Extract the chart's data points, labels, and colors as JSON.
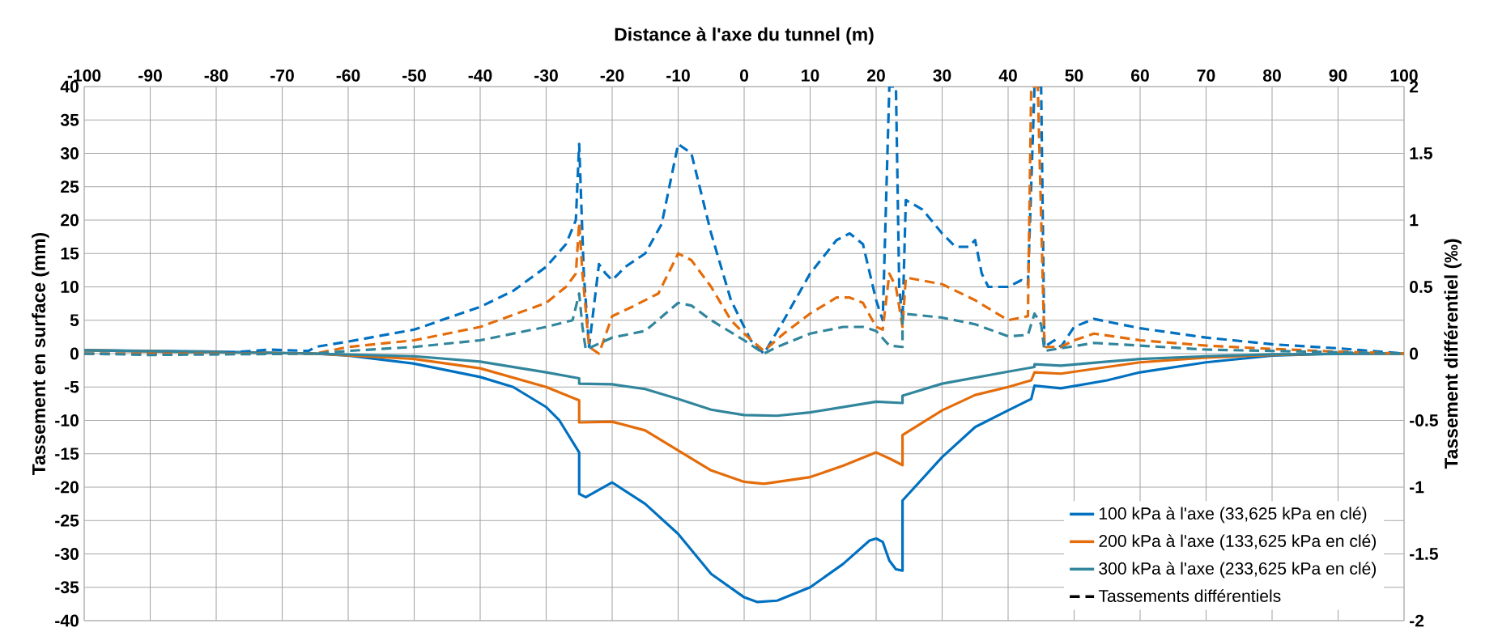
{
  "chart_data": {
    "type": "line",
    "xlabel": "Distance à l'axe du tunnel (m)",
    "ylabel": "Tassement en surface (mm)",
    "y2label": "Tassement différentiel (‰)",
    "xlim": [
      -100,
      100
    ],
    "xticks": [
      -100,
      -90,
      -80,
      -70,
      -60,
      -50,
      -40,
      -30,
      -20,
      -10,
      0,
      10,
      20,
      30,
      40,
      50,
      60,
      70,
      80,
      90,
      100
    ],
    "ylim": [
      -40,
      40
    ],
    "yticks": [
      -40,
      -35,
      -30,
      -25,
      -20,
      -15,
      -10,
      -5,
      0,
      5,
      10,
      15,
      20,
      25,
      30,
      35,
      40
    ],
    "y2lim": [
      -2,
      2
    ],
    "y2ticks": [
      -2,
      -1.5,
      -1,
      -0.5,
      0,
      0.5,
      1,
      1.5,
      2
    ],
    "grid": true,
    "legend": "bottom right",
    "annotations": [
      "Tassements différentiels"
    ],
    "series": [
      {
        "name": "100 kPa à l'axe (33,625 kPa en clé)",
        "color": "#0070c0",
        "line_style": "solid",
        "axis": "y",
        "x": [
          -100,
          -80,
          -65,
          -60,
          -50,
          -40,
          -35,
          -30,
          -28,
          -25,
          -25,
          -24,
          -20,
          -15,
          -10,
          -5,
          0,
          2,
          5,
          10,
          15,
          19,
          20,
          21,
          22,
          23,
          24,
          24,
          30,
          35,
          40,
          43.5,
          44,
          48,
          55,
          60,
          70,
          80,
          90,
          100
        ],
        "values": [
          0.5,
          0.3,
          0,
          -0.3,
          -1.5,
          -3.5,
          -5,
          -8,
          -10,
          -14.8,
          -21,
          -21.5,
          -19.3,
          -22.5,
          -27,
          -33,
          -36.5,
          -37.2,
          -37,
          -35,
          -31.5,
          -28,
          -27.7,
          -28.2,
          -31,
          -32.3,
          -32.5,
          -22,
          -15.5,
          -11,
          -8.5,
          -6.8,
          -4.8,
          -5.2,
          -4,
          -2.8,
          -1.3,
          -0.3,
          0,
          0
        ]
      },
      {
        "name": "200 kPa à l'axe (133,625 kPa en clé)",
        "color": "#e46c0a",
        "line_style": "solid",
        "axis": "y",
        "x": [
          -100,
          -65,
          -50,
          -40,
          -30,
          -25,
          -25,
          -20,
          -15,
          -10,
          -5,
          0,
          3,
          10,
          15,
          20,
          22,
          24,
          24,
          30,
          35,
          40,
          43.5,
          44,
          48,
          55,
          60,
          70,
          80,
          90,
          100
        ],
        "values": [
          0.5,
          0,
          -0.8,
          -2.2,
          -5,
          -7,
          -10.3,
          -10.2,
          -11.5,
          -14.5,
          -17.5,
          -19.2,
          -19.5,
          -18.5,
          -16.8,
          -14.8,
          -15.7,
          -16.7,
          -12.2,
          -8.5,
          -6.2,
          -5,
          -4,
          -2.8,
          -3,
          -2,
          -1.3,
          -0.6,
          -0.2,
          0,
          0
        ]
      },
      {
        "name": "300 kPa à l'axe (233,625 kPa en clé)",
        "color": "#31859c",
        "line_style": "solid",
        "axis": "y",
        "x": [
          -100,
          -65,
          -50,
          -40,
          -30,
          -25,
          -25,
          -20,
          -15,
          -10,
          -5,
          0,
          5,
          10,
          15,
          20,
          24,
          24,
          30,
          40,
          44,
          44,
          48,
          55,
          60,
          70,
          80,
          100
        ],
        "values": [
          0.5,
          0,
          -0.4,
          -1.2,
          -2.8,
          -3.7,
          -4.5,
          -4.6,
          -5.3,
          -6.8,
          -8.4,
          -9.2,
          -9.3,
          -8.8,
          -8,
          -7.2,
          -7.4,
          -6.3,
          -4.5,
          -2.7,
          -2,
          -1.6,
          -1.8,
          -1.2,
          -0.8,
          -0.4,
          -0.1,
          0
        ]
      },
      {
        "color": "#0070c0",
        "line_style": "dashed",
        "axis": "y2",
        "x": [
          -100,
          -80,
          -72,
          -66,
          -65,
          -60,
          -50,
          -40,
          -35,
          -30,
          -27,
          -25.5,
          -25,
          -24.3,
          -23.5,
          -22,
          -21,
          -20,
          -18,
          -15,
          -12.5,
          -10,
          -8,
          -5,
          -2,
          1,
          3,
          6,
          10,
          14,
          16,
          18,
          20,
          21,
          22,
          23,
          23.5,
          24,
          24.5,
          27,
          30,
          32,
          34,
          35,
          36,
          37,
          40,
          42,
          43,
          44,
          45,
          45.5,
          47,
          48,
          50,
          53,
          60,
          70,
          80,
          90,
          100
        ],
        "values": [
          0,
          0,
          0.03,
          0.02,
          0.05,
          0.09,
          0.18,
          0.35,
          0.47,
          0.65,
          0.82,
          1.0,
          1.57,
          0.6,
          0.05,
          0.67,
          0.6,
          0.55,
          0.65,
          0.75,
          0.97,
          1.57,
          1.5,
          0.9,
          0.4,
          0.1,
          0,
          0.25,
          0.6,
          0.85,
          0.9,
          0.82,
          0.4,
          0.25,
          2,
          2,
          0.5,
          0.25,
          1.15,
          1.08,
          0.9,
          0.8,
          0.8,
          0.85,
          0.6,
          0.5,
          0.5,
          0.55,
          0.52,
          2,
          2,
          0.05,
          0.1,
          0.05,
          0.2,
          0.26,
          0.19,
          0.12,
          0.07,
          0.04,
          0
        ]
      },
      {
        "color": "#e46c0a",
        "line_style": "dashed",
        "axis": "y2",
        "x": [
          -100,
          -65,
          -60,
          -50,
          -40,
          -30,
          -27,
          -25.5,
          -25,
          -24.5,
          -23.5,
          -22,
          -20,
          -17,
          -13,
          -10,
          -8,
          -5,
          -2,
          0,
          3,
          6,
          10,
          14,
          16,
          18,
          20,
          21,
          22,
          23,
          24,
          24.5,
          30,
          35,
          40,
          43,
          43.5,
          44.5,
          45.5,
          48,
          50,
          53,
          60,
          70,
          80,
          90,
          100
        ],
        "values": [
          0,
          0,
          0.05,
          0.1,
          0.2,
          0.38,
          0.5,
          0.6,
          0.98,
          0.6,
          0.05,
          0,
          0.28,
          0.35,
          0.45,
          0.75,
          0.7,
          0.5,
          0.25,
          0.15,
          0.02,
          0.15,
          0.3,
          0.42,
          0.42,
          0.38,
          0.2,
          0.18,
          0.6,
          0.5,
          0.2,
          0.57,
          0.52,
          0.4,
          0.25,
          0.28,
          2,
          2,
          0.05,
          0.05,
          0.1,
          0.15,
          0.1,
          0.06,
          0.035,
          0.015,
          0
        ]
      },
      {
        "color": "#31859c",
        "line_style": "dashed",
        "axis": "y2",
        "x": [
          -100,
          -90,
          -65,
          -60,
          -50,
          -40,
          -30,
          -26,
          -25,
          -24.5,
          -24,
          -20,
          -15,
          -10,
          -8,
          -5,
          0,
          3,
          5,
          10,
          15,
          18,
          20,
          22,
          24,
          24,
          30,
          35,
          40,
          43,
          44,
          45,
          45.5,
          48,
          53,
          60,
          70,
          80,
          100
        ],
        "values": [
          0,
          -0.01,
          0,
          0.02,
          0.05,
          0.1,
          0.2,
          0.25,
          0.45,
          0.2,
          0.03,
          0.12,
          0.17,
          0.38,
          0.36,
          0.25,
          0.1,
          0,
          0.05,
          0.15,
          0.2,
          0.2,
          0.17,
          0.06,
          0.05,
          0.3,
          0.27,
          0.22,
          0.13,
          0.14,
          0.3,
          0.22,
          0.02,
          0.04,
          0.08,
          0.06,
          0.03,
          0.02,
          0
        ]
      }
    ]
  }
}
